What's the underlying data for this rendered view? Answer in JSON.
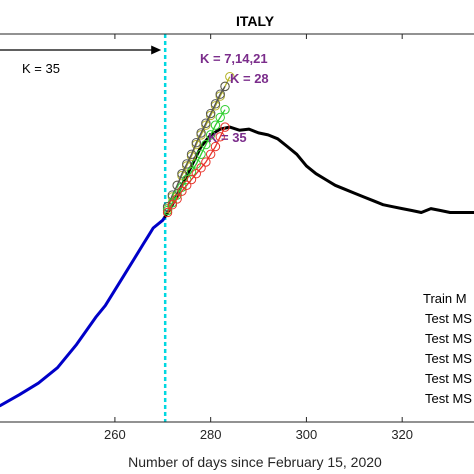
{
  "chart_data": {
    "type": "line",
    "title": "ITALY",
    "xlabel": "Number of days since February 15, 2020",
    "ylabel": "",
    "xlim": [
      236,
      335
    ],
    "ylim": [
      0,
      1
    ],
    "xticks": [
      260,
      280,
      300,
      320
    ],
    "grid": false,
    "legend": "bottom-right",
    "colors": {
      "train": "#0000c8",
      "test": "#000000",
      "split": "#00d8e0",
      "forecast_red": "#e8332a",
      "forecast_green": "#2fce2f",
      "forecast_olive": "#b5b327",
      "forecast_black": "#555555",
      "k_label": "#7b2d8b"
    },
    "split_day": 270.5,
    "split_label": "K = 35",
    "forecast_labels": [
      "K = 7,14,21",
      "K = 28",
      "K = 35"
    ],
    "legend_entries": [
      "Train M",
      "Test MS",
      "Test MS",
      "Test MS",
      "Test MS",
      "Test MS"
    ],
    "series": [
      {
        "key": "train",
        "x": [
          236,
          240,
          244,
          248,
          252,
          256,
          258,
          260,
          262,
          264,
          266,
          267,
          268,
          270,
          270.5
        ],
        "y": [
          0.042,
          0.07,
          0.1,
          0.14,
          0.2,
          0.27,
          0.3,
          0.34,
          0.38,
          0.42,
          0.46,
          0.48,
          0.5,
          0.52,
          0.53
        ]
      },
      {
        "key": "test",
        "x": [
          270.5,
          272,
          274,
          276,
          278,
          280,
          282,
          284,
          286,
          288,
          290,
          292,
          294,
          296,
          298,
          300,
          302,
          304,
          306,
          308,
          310,
          312,
          314,
          316,
          318,
          320,
          322,
          324,
          326,
          328,
          330,
          332,
          335
        ],
        "y": [
          0.53,
          0.56,
          0.61,
          0.66,
          0.71,
          0.74,
          0.755,
          0.76,
          0.752,
          0.755,
          0.745,
          0.74,
          0.73,
          0.71,
          0.69,
          0.66,
          0.64,
          0.625,
          0.61,
          0.6,
          0.59,
          0.58,
          0.57,
          0.56,
          0.555,
          0.55,
          0.545,
          0.54,
          0.55,
          0.545,
          0.54,
          0.54,
          0.54
        ]
      }
    ],
    "forecasts": [
      {
        "key": "olive",
        "x": [
          271,
          272,
          273,
          274,
          275,
          276,
          277,
          278,
          279,
          280,
          281,
          282,
          283,
          284
        ],
        "y": [
          0.55,
          0.58,
          0.61,
          0.635,
          0.66,
          0.685,
          0.715,
          0.74,
          0.765,
          0.79,
          0.815,
          0.84,
          0.865,
          0.89
        ]
      },
      {
        "key": "black",
        "x": [
          271,
          272,
          273,
          274,
          275,
          276,
          277,
          278,
          279,
          280,
          281,
          282,
          283
        ],
        "y": [
          0.555,
          0.585,
          0.61,
          0.64,
          0.665,
          0.69,
          0.72,
          0.745,
          0.77,
          0.795,
          0.82,
          0.845,
          0.865
        ]
      },
      {
        "key": "green",
        "x": [
          271,
          272,
          273,
          274,
          275,
          276,
          277,
          278,
          279,
          280,
          281,
          282,
          283
        ],
        "y": [
          0.545,
          0.565,
          0.585,
          0.605,
          0.625,
          0.645,
          0.665,
          0.69,
          0.715,
          0.74,
          0.765,
          0.785,
          0.805
        ]
      },
      {
        "key": "red",
        "x": [
          271,
          272,
          273,
          274,
          275,
          276,
          277,
          278,
          279,
          280,
          281,
          282,
          283
        ],
        "y": [
          0.54,
          0.56,
          0.575,
          0.595,
          0.61,
          0.625,
          0.64,
          0.655,
          0.67,
          0.69,
          0.71,
          0.735,
          0.76
        ]
      }
    ]
  }
}
